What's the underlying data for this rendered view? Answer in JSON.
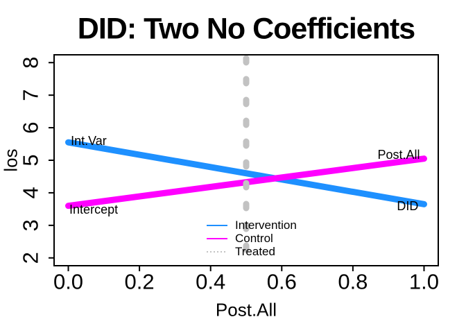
{
  "figure": {
    "background": "#FFFFFF",
    "frame_color": "#000000",
    "text_color": "#000000"
  },
  "chart_data": {
    "type": "line",
    "title": "DID: Two No Coefficients",
    "xlabel": "Post.All",
    "ylabel": "los",
    "xlim": [
      0,
      1
    ],
    "ylim": [
      2,
      8
    ],
    "grid": false,
    "x_tick_values": [
      0,
      0.2,
      0.4,
      0.6,
      0.8,
      1.0
    ],
    "x_tick_labels": [
      "0.0",
      "0.2",
      "0.4",
      "0.6",
      "0.8",
      "1.0"
    ],
    "y_tick_values": [
      2,
      3,
      4,
      5,
      6,
      7,
      8
    ],
    "y_tick_labels": [
      "2",
      "3",
      "4",
      "5",
      "6",
      "7",
      "8"
    ],
    "series": [
      {
        "name": "Intervention",
        "type": "line",
        "color": "#1E90FF",
        "width": 9,
        "x": [
          0,
          1
        ],
        "y": [
          5.55,
          3.65
        ]
      },
      {
        "name": "Control",
        "type": "line",
        "color": "#FF00FF",
        "width": 9,
        "x": [
          0,
          1
        ],
        "y": [
          3.6,
          5.05
        ]
      },
      {
        "name": "Treated",
        "type": "vline",
        "color": "#C2C2C2",
        "width": 9,
        "dash": "dotted",
        "x": 0.5
      }
    ],
    "annotations": [
      {
        "text": "Int.Var",
        "x": 0.007,
        "y": 5.6,
        "align": "start"
      },
      {
        "text": "Intercept",
        "x": 0.003,
        "y": 3.49,
        "align": "start"
      },
      {
        "text": "Post.All",
        "x": 0.929,
        "y": 5.17,
        "align": "middle"
      },
      {
        "text": "DID",
        "x": 0.954,
        "y": 3.59,
        "align": "middle"
      }
    ],
    "legend": {
      "position": "bottom-center",
      "border": false,
      "entries": [
        {
          "label": "Intervention",
          "color": "#1E90FF",
          "line_style": "solid"
        },
        {
          "label": "Control",
          "color": "#FF00FF",
          "line_style": "solid"
        },
        {
          "label": "Treated",
          "color": "#C2C2C2",
          "line_style": "dotted"
        }
      ]
    }
  }
}
